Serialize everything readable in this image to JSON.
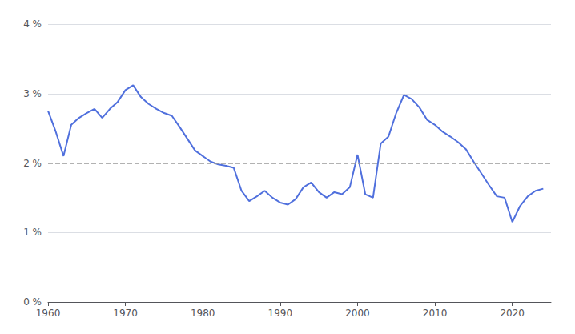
{
  "chart_data": {
    "type": "line",
    "x": [
      1960,
      1961,
      1962,
      1963,
      1964,
      1965,
      1966,
      1967,
      1968,
      1969,
      1970,
      1971,
      1972,
      1973,
      1974,
      1975,
      1976,
      1977,
      1978,
      1979,
      1980,
      1981,
      1982,
      1983,
      1984,
      1985,
      1986,
      1987,
      1988,
      1989,
      1990,
      1991,
      1992,
      1993,
      1994,
      1995,
      1996,
      1997,
      1998,
      1999,
      2000,
      2001,
      2002,
      2003,
      2004,
      2005,
      2006,
      2007,
      2008,
      2009,
      2010,
      2011,
      2012,
      2013,
      2014,
      2015,
      2016,
      2017,
      2018,
      2019,
      2020,
      2021,
      2022,
      2023,
      2024
    ],
    "values": [
      2.75,
      2.45,
      2.1,
      2.55,
      2.65,
      2.72,
      2.78,
      2.65,
      2.78,
      2.88,
      3.05,
      3.12,
      2.95,
      2.85,
      2.78,
      2.72,
      2.68,
      2.52,
      2.35,
      2.18,
      2.1,
      2.02,
      1.98,
      1.96,
      1.93,
      1.6,
      1.45,
      1.52,
      1.6,
      1.5,
      1.43,
      1.4,
      1.48,
      1.65,
      1.72,
      1.58,
      1.5,
      1.58,
      1.55,
      1.65,
      2.12,
      1.55,
      1.5,
      2.28,
      2.38,
      2.72,
      2.98,
      2.92,
      2.8,
      2.62,
      2.55,
      2.45,
      2.38,
      2.3,
      2.2,
      2.02,
      1.85,
      1.68,
      1.52,
      1.5,
      1.15,
      1.38,
      1.52,
      1.6,
      1.63
    ],
    "xlim": [
      1960,
      2025
    ],
    "xticks": [
      1960,
      1970,
      1980,
      1990,
      2000,
      2010,
      2020
    ],
    "ylim": [
      0,
      4
    ],
    "yticks": [
      {
        "value": 0,
        "label": "0 %"
      },
      {
        "value": 1,
        "label": "1 %"
      },
      {
        "value": 2,
        "label": "2 %"
      },
      {
        "value": 3,
        "label": "3 %"
      },
      {
        "value": 4,
        "label": "4 %"
      }
    ],
    "reference_line": {
      "value": 2.0,
      "line_style": "dashed"
    },
    "grid": true
  }
}
